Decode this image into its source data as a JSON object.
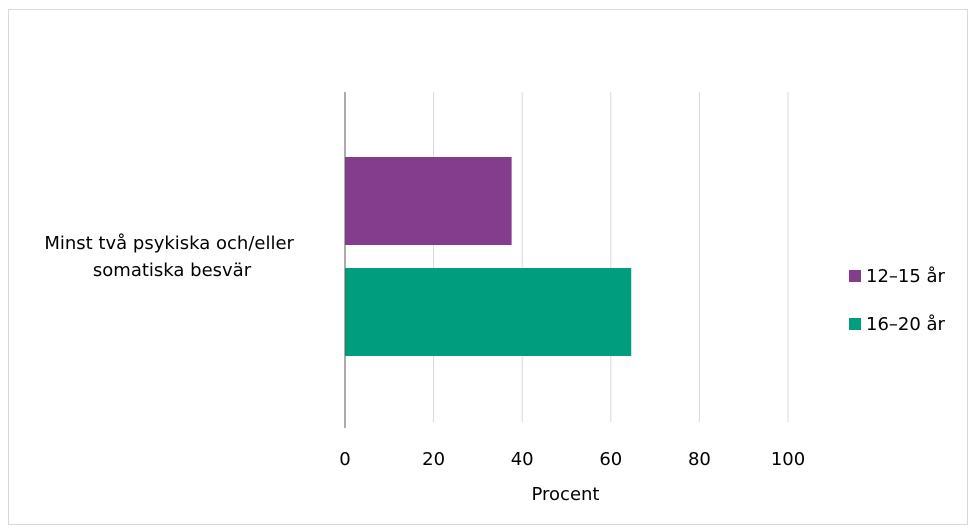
{
  "chart_data": {
    "type": "bar",
    "orientation": "horizontal",
    "categories": [
      "Minst två psykiska och/eller somatiska besvär"
    ],
    "category_label_lines": [
      "Minst två psykiska och/eller",
      "somatiska besvär"
    ],
    "series": [
      {
        "name": "12–15 år",
        "values": [
          37.5
        ],
        "color": "#843C8C"
      },
      {
        "name": "16–20 år",
        "values": [
          64.5
        ],
        "color": "#009E7E"
      }
    ],
    "xlabel": "Procent",
    "ylabel": "",
    "xlim": [
      0,
      100
    ],
    "xticks": [
      0,
      20,
      40,
      60,
      80,
      100
    ],
    "xtick_labels": [
      "0",
      "20",
      "40",
      "60",
      "80",
      "100"
    ],
    "grid": true,
    "legend_position": "right"
  }
}
